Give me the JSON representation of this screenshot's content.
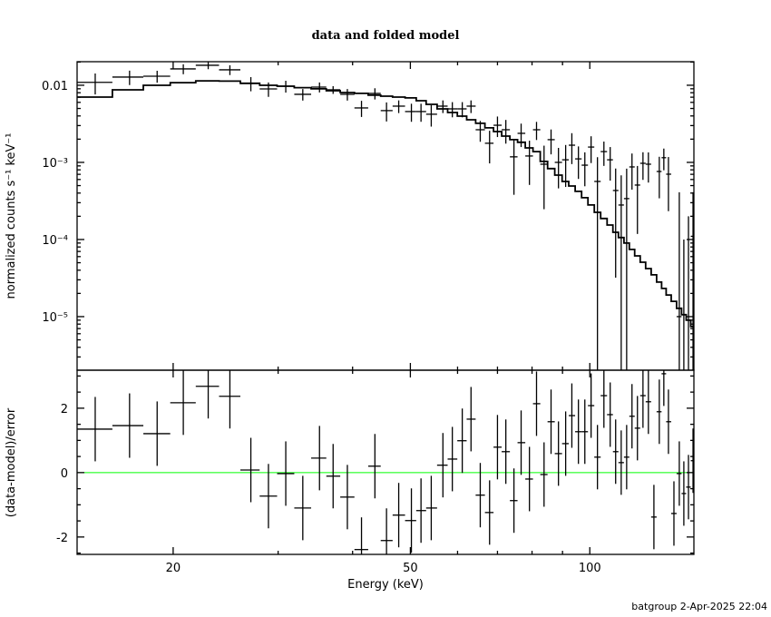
{
  "chart_data": {
    "type": "line",
    "title": "data and folded model",
    "xlabel": "Energy (keV)",
    "x_scale": "log",
    "xlim": [
      13.8,
      149.5
    ],
    "x_ticks": [
      {
        "value": 20,
        "label": "20"
      },
      {
        "value": 50,
        "label": "50"
      },
      {
        "value": 100,
        "label": "100"
      }
    ],
    "footer": "batgroup  2-Apr-2025 22:04",
    "colors": {
      "data": "#000000",
      "model": "#000000",
      "zero_line": "#00ff00"
    },
    "energy_keV": [
      14.8,
      16.9,
      18.8,
      20.8,
      22.9,
      24.9,
      27.0,
      28.9,
      30.9,
      33.0,
      35.2,
      37.1,
      39.2,
      41.4,
      43.6,
      45.6,
      47.8,
      50.2,
      52.1,
      54.2,
      56.7,
      58.8,
      61.1,
      63.2,
      65.5,
      67.9,
      70.0,
      72.3,
      74.6,
      76.7,
      79.2,
      81.4,
      83.8,
      86.1,
      88.6,
      91.1,
      93.3,
      95.7,
      98.1,
      100.5,
      103.0,
      105.6,
      108.2,
      110.5,
      112.9,
      115.3,
      117.7,
      120.2,
      122.8,
      125.4,
      128.1,
      130.8,
      133.1,
      135.5,
      138.4,
      141.3,
      143.8,
      146.4,
      149.0
    ],
    "panels": [
      {
        "name": "spectrum",
        "ylabel": "normalized counts s⁻¹ keV⁻¹",
        "y_scale": "log",
        "ylim": [
          2.02e-06,
          0.0202
        ],
        "y_ticks": [
          {
            "value": 0.01,
            "label": "0.01"
          },
          {
            "value": 0.001,
            "label": "10⁻³"
          },
          {
            "value": 0.0001,
            "label": "10⁻⁴"
          },
          {
            "value": 1e-05,
            "label": "10⁻⁵"
          }
        ],
        "series": [
          {
            "name": "data",
            "style": "crosses",
            "values": [
              0.0109,
              0.01276,
              0.0131,
              0.0163,
              0.01815,
              0.01585,
              0.01055,
              0.00897,
              0.00973,
              0.00763,
              0.00947,
              0.00873,
              0.00763,
              0.00508,
              0.00784,
              0.00469,
              0.00536,
              0.00456,
              0.00456,
              0.00421,
              0.00536,
              0.00494,
              0.00494,
              0.00536,
              0.00265,
              0.00177,
              0.00303,
              0.00265,
              0.00118,
              0.00238,
              0.00121,
              0.00265,
              0.000947,
              0.00197,
              0.001,
              0.00108,
              0.00167,
              0.00111,
              0.00092,
              0.00158,
              0.000566,
              0.00138,
              0.00108,
              0.000432,
              0.00028,
              0.000339,
              0.000873,
              0.000508,
              0.000973,
              0.000947,
              -0.0004,
              0.000762,
              0.00115,
              0.000703,
              -0.0003,
              1e-05,
              -0.0002,
              -0.00015,
              0.00011
            ],
            "errors": [
              0.0033,
              0.0027,
              0.0023,
              0.0024,
              0.002,
              0.0023,
              0.0022,
              0.0019,
              0.0017,
              0.0013,
              0.0014,
              0.001,
              0.0013,
              0.0012,
              0.0013,
              0.0013,
              0.001,
              0.0012,
              0.0012,
              0.0013,
              0.001,
              0.0011,
              0.0011,
              0.001,
              0.0008,
              0.0008,
              0.0009,
              0.0009,
              0.0008,
              0.0008,
              0.0007,
              0.0007,
              0.0007,
              0.0007,
              0.00054,
              0.0006,
              0.00072,
              0.0005,
              0.00043,
              0.0006,
              0.0006,
              0.00048,
              0.0005,
              0.0004,
              0.0004,
              0.00049,
              0.00043,
              0.00039,
              0.00038,
              0.0004,
              0.00029,
              0.00042,
              0.00036,
              0.00047,
              0.0003,
              0.0004,
              0.0003,
              0.00035,
              0.0003
            ]
          },
          {
            "name": "folded model",
            "style": "step",
            "values": [
              0.00703,
              0.00873,
              0.01,
              0.0108,
              0.0114,
              0.0113,
              0.0106,
              0.01,
              0.00973,
              0.0093,
              0.00898,
              0.0085,
              0.00805,
              0.00784,
              0.00745,
              0.00722,
              0.00703,
              0.00685,
              0.00631,
              0.00566,
              0.00494,
              0.00443,
              0.00398,
              0.00357,
              0.00321,
              0.0028,
              0.00251,
              0.00219,
              0.00197,
              0.00182,
              0.00154,
              0.00138,
              0.00103,
              0.00083,
              0.000684,
              0.000566,
              0.000494,
              0.000421,
              0.000348,
              0.00028,
              0.000225,
              0.000187,
              0.000154,
              0.000124,
              0.000106,
              8.98e-05,
              7.43e-05,
              6.14e-05,
              5.08e-05,
              4.2e-05,
              3.48e-05,
              2.8e-05,
              2.32e-05,
              1.91e-05,
              1.58e-05,
              1.28e-05,
              1.06e-05,
              8.98e-06,
              7.43e-06
            ]
          }
        ]
      },
      {
        "name": "residuals",
        "ylabel": "(data-model)/error",
        "y_scale": "linear",
        "ylim": [
          -2.54,
          3.18
        ],
        "y_ticks": [
          {
            "value": 2,
            "label": "2"
          },
          {
            "value": 0,
            "label": "0"
          },
          {
            "value": -2,
            "label": "-2"
          }
        ],
        "series": [
          {
            "name": "residual",
            "style": "crosses",
            "values": [
              1.35,
              1.46,
              1.21,
              2.17,
              2.68,
              2.37,
              0.08,
              -0.73,
              -0.03,
              -1.1,
              0.45,
              -0.11,
              -0.76,
              -2.39,
              0.2,
              -2.11,
              -1.32,
              -1.49,
              -1.18,
              -1.1,
              0.23,
              0.42,
              0.99,
              1.66,
              -0.7,
              -1.24,
              0.79,
              0.65,
              -0.87,
              0.93,
              -0.2,
              2.14,
              -0.06,
              1.58,
              0.59,
              0.9,
              1.77,
              1.27,
              1.27,
              2.08,
              0.48,
              2.39,
              1.8,
              0.65,
              0.31,
              0.48,
              1.75,
              1.38,
              2.39,
              2.2,
              -1.38,
              1.89,
              3.07,
              1.58,
              -1.27,
              -0.03,
              -0.65,
              -0.45,
              0.37
            ],
            "errors": 1.0
          }
        ]
      }
    ]
  }
}
